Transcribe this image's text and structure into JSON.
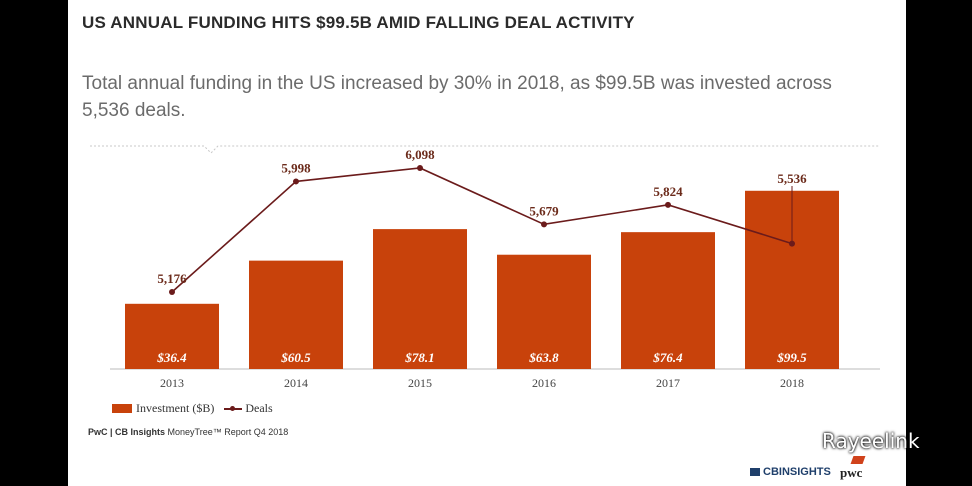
{
  "title": "US ANNUAL FUNDING HITS $99.5B AMID FALLING DEAL ACTIVITY",
  "subtitle": "Total annual funding in the US increased by 30% in 2018, as $99.5B was invested across 5,536 deals.",
  "legend": {
    "investment_label": "Investment ($B)",
    "deals_label": "Deals"
  },
  "source": {
    "brand": "PwC | CB Insights",
    "text": " MoneyTree™ Report Q4 2018"
  },
  "logos": {
    "cbinsights": "CBINSIGHTS",
    "pwc": "pwc"
  },
  "watermark": "Rayeelink",
  "colors": {
    "bar": "#c8420b",
    "line": "#6b1b1b",
    "bar_label": "#ffffff"
  },
  "chart_data": {
    "type": "bar",
    "categories": [
      "2013",
      "2014",
      "2015",
      "2016",
      "2017",
      "2018"
    ],
    "series": [
      {
        "name": "Investment ($B)",
        "type": "bar",
        "values": [
          36.4,
          60.5,
          78.1,
          63.8,
          76.4,
          99.5
        ],
        "labels": [
          "$36.4",
          "$60.5",
          "$78.1",
          "$63.8",
          "$76.4",
          "$99.5"
        ]
      },
      {
        "name": "Deals",
        "type": "line",
        "values": [
          5176,
          5998,
          6098,
          5679,
          5824,
          5536
        ],
        "labels": [
          "5,176",
          "5,998",
          "6,098",
          "5,679",
          "5,824",
          "5,536"
        ]
      }
    ],
    "legend_position": "bottom-left",
    "grid": false
  }
}
